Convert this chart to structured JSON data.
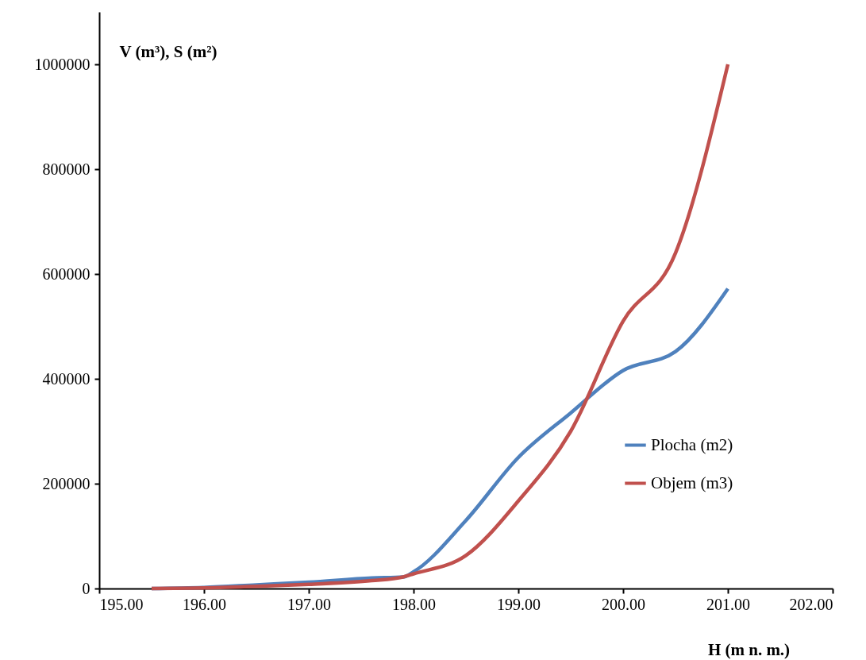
{
  "chart_data": {
    "type": "line",
    "xlabel": "H (m n. m.)",
    "ylabel": "V (m³), S (m²)",
    "xlim": [
      195,
      202
    ],
    "xticks": [
      {
        "value": 195,
        "label": "195.00"
      },
      {
        "value": 196,
        "label": "196.00"
      },
      {
        "value": 197,
        "label": "197.00"
      },
      {
        "value": 198,
        "label": "198.00"
      },
      {
        "value": 199,
        "label": "199.00"
      },
      {
        "value": 200,
        "label": "200.00"
      },
      {
        "value": 201,
        "label": "201.00"
      },
      {
        "value": 202,
        "label": "202.00"
      }
    ],
    "ylim": [
      0,
      1100000
    ],
    "yticks": [
      0,
      200000,
      400000,
      600000,
      800000,
      1000000
    ],
    "grid": false,
    "legend": "right",
    "marker": "none",
    "line_style": "solid",
    "series": [
      {
        "name": "Plocha (m2)",
        "color": "#4f81bd",
        "x": [
          195.5,
          196,
          196.5,
          197,
          197.6,
          197.9,
          198,
          198.5,
          199,
          199.5,
          200,
          200.5,
          201
        ],
        "values": [
          0,
          2000,
          7000,
          12000,
          20000,
          22000,
          32000,
          130000,
          250000,
          335000,
          416000,
          452000,
          572000
        ]
      },
      {
        "name": "Objem (m3)",
        "color": "#c0504d",
        "x": [
          195.5,
          196,
          196.5,
          197,
          197.6,
          197.9,
          198,
          198.5,
          199,
          199.5,
          200,
          200.5,
          201
        ],
        "values": [
          0,
          1000,
          4000,
          8000,
          15000,
          22000,
          28000,
          63000,
          167000,
          300000,
          510000,
          640000,
          1000000
        ]
      }
    ]
  }
}
